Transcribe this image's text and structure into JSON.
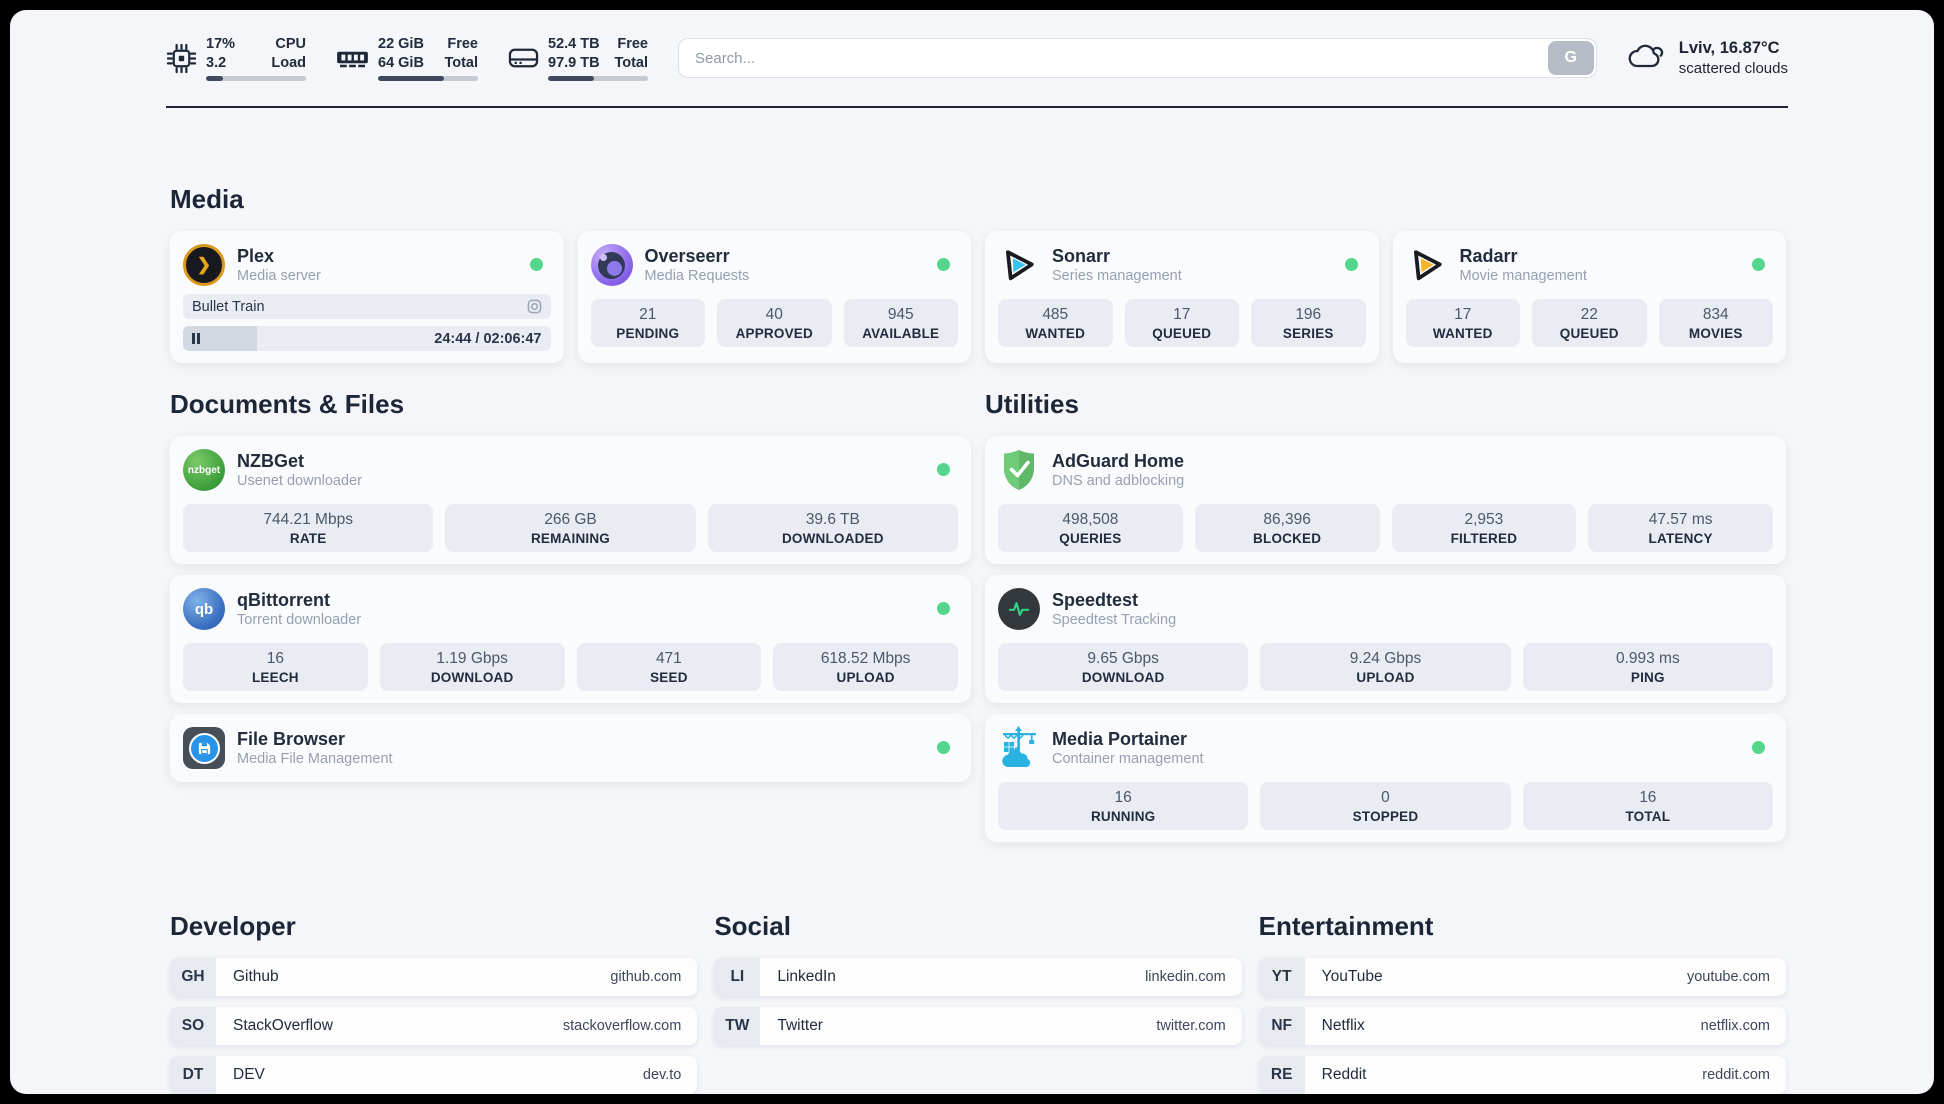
{
  "colors": {
    "status_green": "#54d78c",
    "accent_dark": "#1d2637",
    "stat_box": "#e9edf3",
    "page_bg": "#f4f6f9"
  },
  "header": {
    "stats": [
      {
        "icon": "cpu-icon",
        "values": [
          "17%",
          "3.2"
        ],
        "labels": [
          "CPU",
          "Load"
        ],
        "progress_pct": 17
      },
      {
        "icon": "ram-icon",
        "values": [
          "22 GiB",
          "64 GiB"
        ],
        "labels": [
          "Free",
          "Total"
        ],
        "progress_pct": 66
      },
      {
        "icon": "disk-icon",
        "values": [
          "52.4 TB",
          "97.9 TB"
        ],
        "labels": [
          "Free",
          "Total"
        ],
        "progress_pct": 46
      }
    ],
    "search": {
      "placeholder": "Search...",
      "engine_button_label": "G"
    },
    "weather": {
      "location": "Lviv, 16.87°C",
      "condition": "scattered clouds"
    }
  },
  "media": {
    "title": "Media",
    "plex": {
      "name": "Plex",
      "subtitle": "Media server",
      "now_playing": "Bullet Train",
      "time": "24:44 / 02:06:47",
      "progress_pct": 20
    },
    "overseerr": {
      "name": "Overseerr",
      "subtitle": "Media Requests",
      "stats": [
        {
          "value": "21",
          "label": "PENDING"
        },
        {
          "value": "40",
          "label": "APPROVED"
        },
        {
          "value": "945",
          "label": "AVAILABLE"
        }
      ]
    },
    "sonarr": {
      "name": "Sonarr",
      "subtitle": "Series management",
      "stats": [
        {
          "value": "485",
          "label": "WANTED"
        },
        {
          "value": "17",
          "label": "QUEUED"
        },
        {
          "value": "196",
          "label": "SERIES"
        }
      ]
    },
    "radarr": {
      "name": "Radarr",
      "subtitle": "Movie management",
      "stats": [
        {
          "value": "17",
          "label": "WANTED"
        },
        {
          "value": "22",
          "label": "QUEUED"
        },
        {
          "value": "834",
          "label": "MOVIES"
        }
      ]
    }
  },
  "documents": {
    "title": "Documents & Files",
    "nzbget": {
      "name": "NZBGet",
      "subtitle": "Usenet downloader",
      "icon_text": "nzbget",
      "stats": [
        {
          "value": "744.21 Mbps",
          "label": "RATE"
        },
        {
          "value": "266 GB",
          "label": "REMAINING"
        },
        {
          "value": "39.6 TB",
          "label": "DOWNLOADED"
        }
      ]
    },
    "qbittorrent": {
      "name": "qBittorrent",
      "subtitle": "Torrent downloader",
      "icon_text": "qb",
      "stats": [
        {
          "value": "16",
          "label": "LEECH"
        },
        {
          "value": "1.19 Gbps",
          "label": "DOWNLOAD"
        },
        {
          "value": "471",
          "label": "SEED"
        },
        {
          "value": "618.52 Mbps",
          "label": "UPLOAD"
        }
      ]
    },
    "filebrowser": {
      "name": "File Browser",
      "subtitle": "Media File Management"
    }
  },
  "utilities": {
    "title": "Utilities",
    "adguard": {
      "name": "AdGuard Home",
      "subtitle": "DNS and adblocking",
      "stats": [
        {
          "value": "498,508",
          "label": "QUERIES"
        },
        {
          "value": "86,396",
          "label": "BLOCKED"
        },
        {
          "value": "2,953",
          "label": "FILTERED"
        },
        {
          "value": "47.57 ms",
          "label": "LATENCY"
        }
      ]
    },
    "speedtest": {
      "name": "Speedtest",
      "subtitle": "Speedtest Tracking",
      "stats": [
        {
          "value": "9.65 Gbps",
          "label": "DOWNLOAD"
        },
        {
          "value": "9.24 Gbps",
          "label": "UPLOAD"
        },
        {
          "value": "0.993 ms",
          "label": "PING"
        }
      ]
    },
    "portainer": {
      "name": "Media Portainer",
      "subtitle": "Container management",
      "stats": [
        {
          "value": "16",
          "label": "RUNNING"
        },
        {
          "value": "0",
          "label": "STOPPED"
        },
        {
          "value": "16",
          "label": "TOTAL"
        }
      ]
    }
  },
  "bookmarks": [
    {
      "title": "Developer",
      "links": [
        {
          "abbr": "GH",
          "name": "Github",
          "url": "github.com"
        },
        {
          "abbr": "SO",
          "name": "StackOverflow",
          "url": "stackoverflow.com"
        },
        {
          "abbr": "DT",
          "name": "DEV",
          "url": "dev.to"
        }
      ]
    },
    {
      "title": "Social",
      "links": [
        {
          "abbr": "LI",
          "name": "LinkedIn",
          "url": "linkedin.com"
        },
        {
          "abbr": "TW",
          "name": "Twitter",
          "url": "twitter.com"
        }
      ]
    },
    {
      "title": "Entertainment",
      "links": [
        {
          "abbr": "YT",
          "name": "YouTube",
          "url": "youtube.com"
        },
        {
          "abbr": "NF",
          "name": "Netflix",
          "url": "netflix.com"
        },
        {
          "abbr": "RE",
          "name": "Reddit",
          "url": "reddit.com"
        }
      ]
    }
  ]
}
